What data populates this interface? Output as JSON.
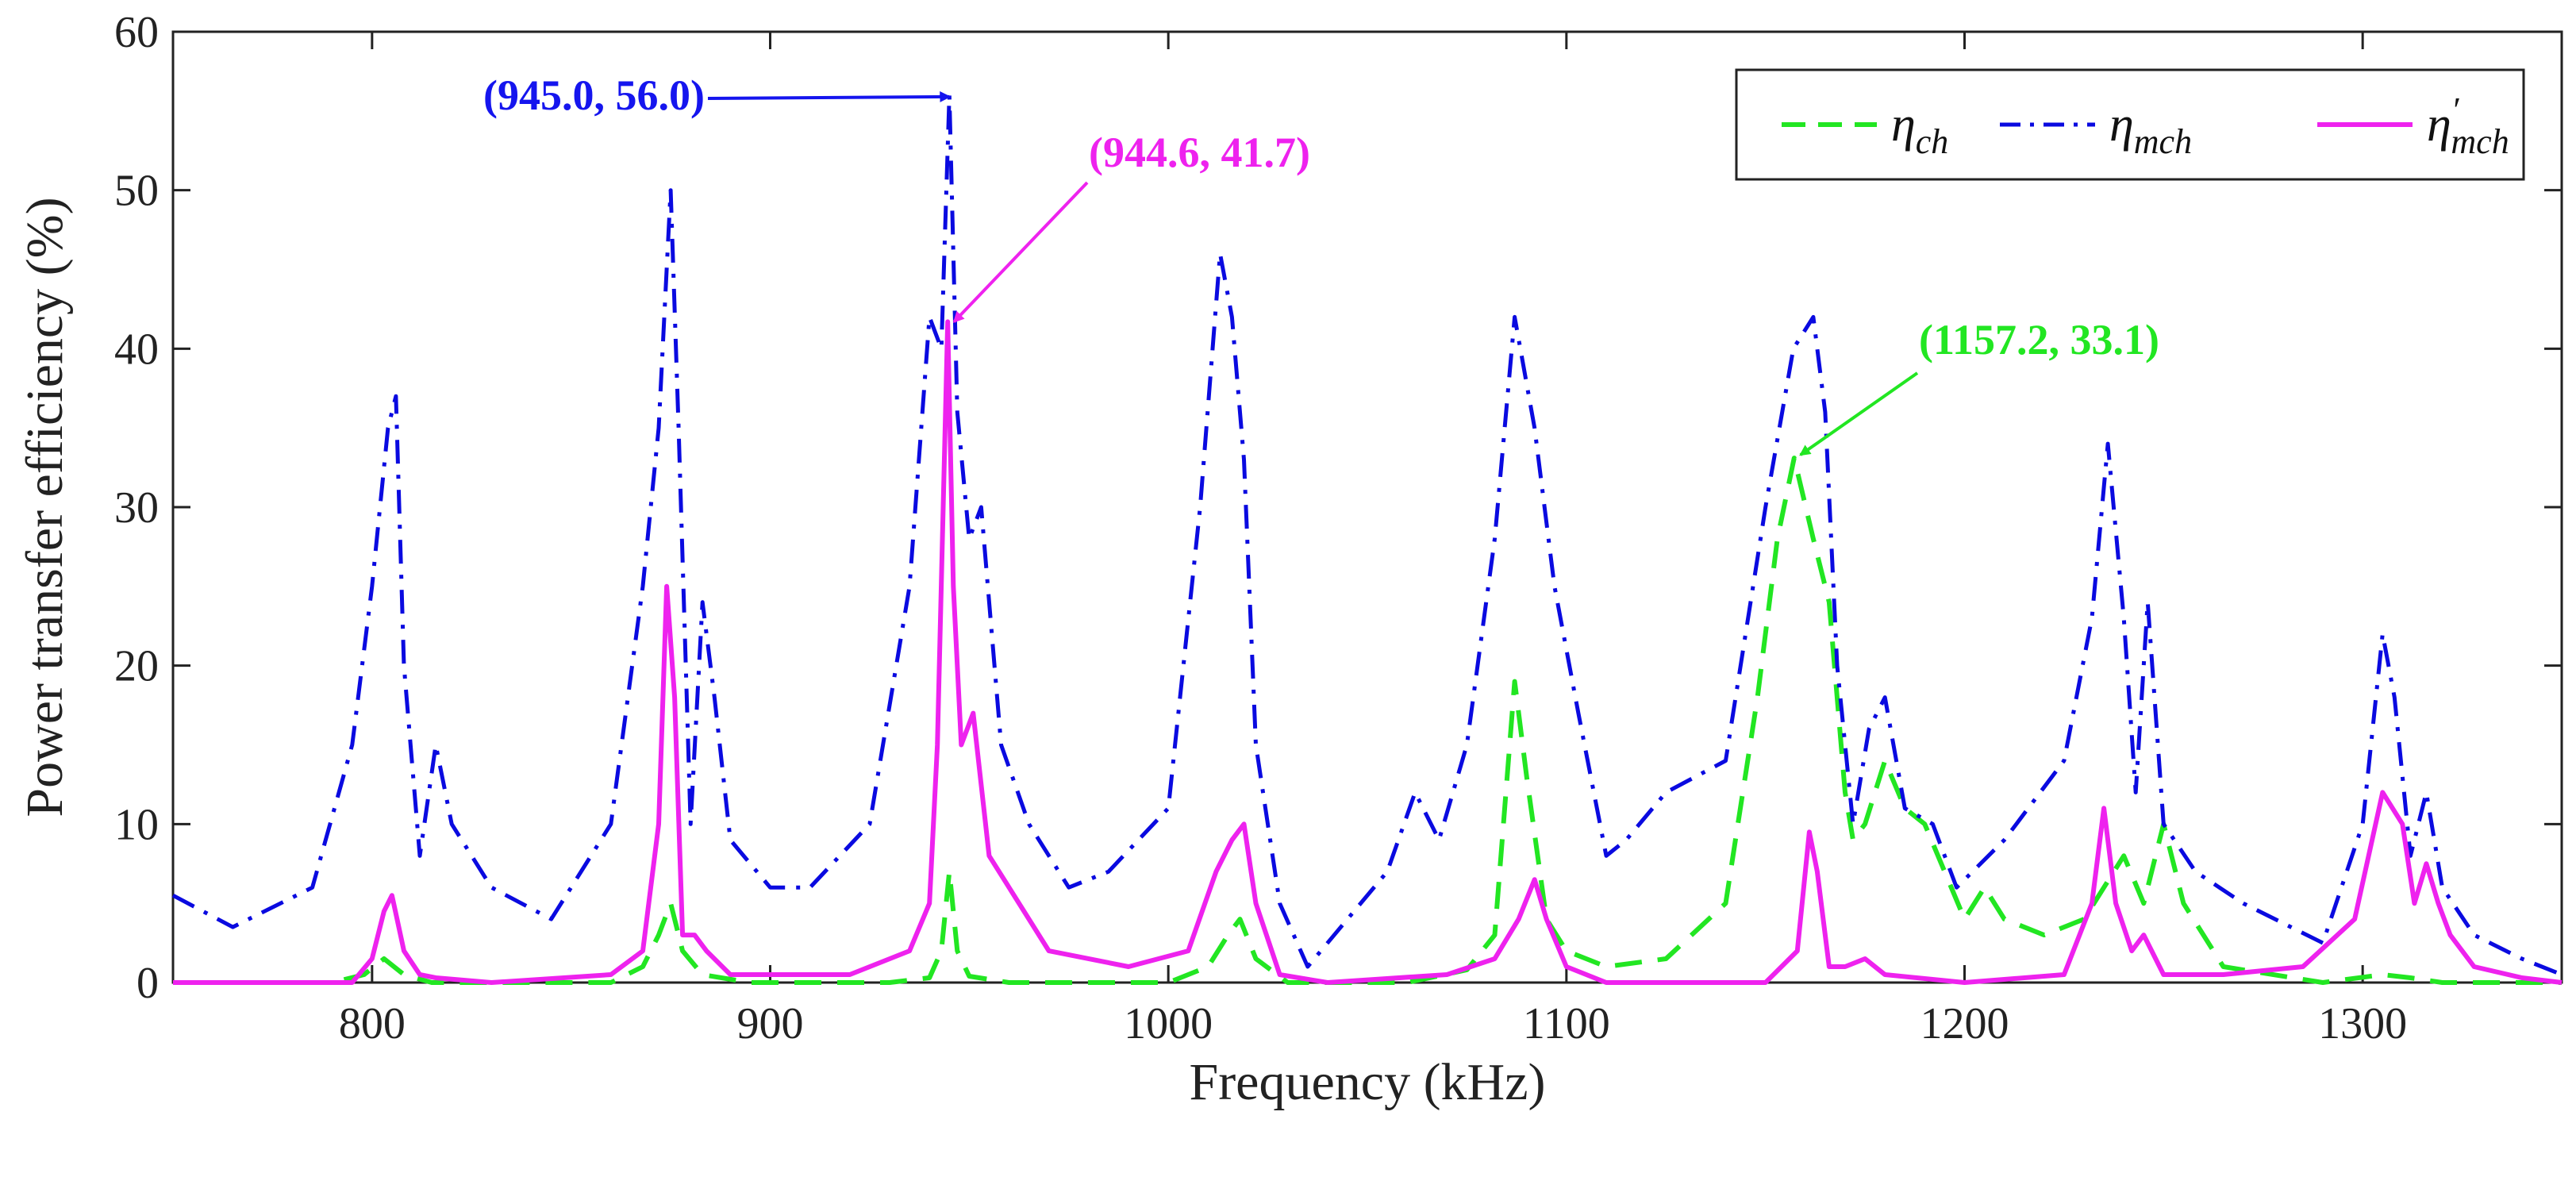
{
  "chart_data": {
    "type": "line",
    "title": "",
    "xlabel": "Frequency (kHz)",
    "ylabel": "Power transfer efficiency (%)",
    "xlim": [
      750,
      1350
    ],
    "ylim": [
      0,
      60
    ],
    "x_ticks": [
      "800",
      "900",
      "1000",
      "1100",
      "1200",
      "1300"
    ],
    "x_tick_values": [
      800,
      900,
      1000,
      1100,
      1200,
      1300
    ],
    "y_ticks": [
      "0",
      "10",
      "20",
      "30",
      "40",
      "50",
      "60"
    ],
    "y_tick_values": [
      0,
      10,
      20,
      30,
      40,
      50,
      60
    ],
    "grid": false,
    "legend": {
      "position": "top-right",
      "entries": [
        {
          "symbol": "η",
          "subscript": "ch",
          "prime": "",
          "series": "eta_ch"
        },
        {
          "symbol": "η",
          "subscript": "mch",
          "prime": "",
          "series": "eta_mch"
        },
        {
          "symbol": "η",
          "subscript": "mch",
          "prime": "′",
          "series": "eta_mch_prime"
        }
      ]
    },
    "series": [
      {
        "id": "eta_ch",
        "name": "η_ch",
        "color": "#22e622",
        "style": "dashed",
        "x": [
          750,
          790,
          798,
          803,
          808,
          815,
          830,
          860,
          868,
          872,
          875,
          878,
          883,
          895,
          930,
          940,
          943,
          945,
          947,
          950,
          960,
          1000,
          1010,
          1015,
          1018,
          1022,
          1030,
          1060,
          1075,
          1082,
          1087,
          1090,
          1095,
          1100,
          1110,
          1125,
          1140,
          1148,
          1153,
          1157.2,
          1162,
          1166,
          1170,
          1172,
          1175,
          1180,
          1185,
          1190,
          1195,
          1200,
          1205,
          1210,
          1220,
          1230,
          1235,
          1240,
          1245,
          1250,
          1255,
          1265,
          1290,
          1305,
          1312,
          1320,
          1350
        ],
        "values": [
          0,
          0,
          0.5,
          1.5,
          0.5,
          0,
          0,
          0,
          1,
          3,
          5,
          2,
          0.5,
          0,
          0,
          0.3,
          2,
          7,
          2,
          0.4,
          0,
          0,
          1,
          3,
          4,
          1.5,
          0,
          0,
          0.8,
          3,
          19,
          13,
          4,
          2,
          1,
          1.5,
          5,
          18,
          28,
          33.1,
          28,
          24,
          12,
          9,
          10,
          14,
          11,
          10,
          7,
          4,
          6,
          4,
          3,
          4,
          6,
          8,
          5,
          10,
          5,
          1,
          0,
          0.5,
          0.3,
          0,
          0
        ]
      },
      {
        "id": "eta_mch",
        "name": "η_mch",
        "color": "#0a0ae0",
        "style": "dashdot",
        "x": [
          750,
          765,
          785,
          795,
          800,
          804,
          806,
          808,
          812,
          816,
          820,
          830,
          845,
          860,
          868,
          872,
          875,
          877,
          880,
          883,
          886,
          890,
          900,
          910,
          925,
          935,
          940,
          943,
          945,
          947,
          950,
          953,
          958,
          965,
          975,
          985,
          1000,
          1008,
          1013,
          1016,
          1019,
          1022,
          1028,
          1035,
          1045,
          1055,
          1062,
          1068,
          1075,
          1082,
          1087,
          1092,
          1097,
          1103,
          1110,
          1115,
          1125,
          1140,
          1150,
          1157,
          1162,
          1165,
          1168,
          1172,
          1176,
          1180,
          1185,
          1192,
          1198,
          1210,
          1225,
          1232,
          1236,
          1240,
          1243,
          1246,
          1250,
          1258,
          1270,
          1290,
          1300,
          1305,
          1308,
          1312,
          1316,
          1320,
          1328,
          1340,
          1350
        ],
        "values": [
          5.5,
          3.5,
          6,
          15,
          25,
          35,
          37,
          20,
          8,
          15,
          10,
          6,
          4,
          10,
          25,
          35,
          50,
          35,
          10,
          24,
          18,
          9,
          6,
          6,
          10,
          25,
          42,
          40,
          56,
          36,
          28,
          30,
          15,
          10,
          6,
          7,
          11,
          30,
          46,
          42,
          33,
          15,
          5,
          1,
          4,
          7,
          12,
          9,
          15,
          28,
          42,
          35,
          25,
          17,
          8,
          9,
          12,
          14,
          30,
          40,
          42,
          36,
          20,
          10,
          16,
          18,
          11,
          10,
          6,
          9,
          14,
          23,
          34,
          23,
          12,
          24,
          10,
          7,
          5,
          2.5,
          10,
          22,
          18,
          8,
          12,
          6,
          3,
          1.5,
          0.5
        ]
      },
      {
        "id": "eta_mch_prime",
        "name": "η′_mch",
        "color": "#ee22ee",
        "style": "solid",
        "x": [
          750,
          795,
          800,
          803,
          805,
          808,
          812,
          816,
          830,
          860,
          868,
          872,
          874,
          876,
          878,
          881,
          884,
          890,
          920,
          935,
          940,
          942,
          944.6,
          946,
          948,
          951,
          955,
          960,
          970,
          990,
          1005,
          1012,
          1016,
          1019,
          1022,
          1028,
          1040,
          1070,
          1082,
          1088,
          1092,
          1095,
          1100,
          1110,
          1150,
          1158,
          1161,
          1163,
          1166,
          1170,
          1175,
          1180,
          1200,
          1225,
          1232,
          1235,
          1238,
          1242,
          1245,
          1250,
          1265,
          1285,
          1298,
          1305,
          1310,
          1313,
          1316,
          1319,
          1322,
          1328,
          1340,
          1350
        ],
        "values": [
          0,
          0,
          1.5,
          4.5,
          5.5,
          2,
          0.5,
          0.3,
          0,
          0.5,
          2,
          10,
          25,
          18,
          3,
          3,
          2,
          0.5,
          0.5,
          2,
          5,
          15,
          41.7,
          25,
          15,
          17,
          8,
          6,
          2,
          1,
          2,
          7,
          9,
          10,
          5,
          0.5,
          0,
          0.5,
          1.5,
          4,
          6.5,
          4,
          1,
          0,
          0,
          2,
          9.5,
          7,
          1,
          1,
          1.5,
          0.5,
          0,
          0.5,
          5,
          11,
          5,
          2,
          3,
          0.5,
          0.5,
          1,
          4,
          12,
          10,
          5,
          7.5,
          5,
          3,
          1,
          0.3,
          0
        ]
      }
    ],
    "annotations": [
      {
        "text": "(945.0, 56.0)",
        "point": [
          945.0,
          56.0
        ],
        "color": "#1515ee"
      },
      {
        "text": "(944.6, 41.7)",
        "point": [
          944.6,
          41.7
        ],
        "color": "#ee22ee"
      },
      {
        "text": "(1157.2, 33.1)",
        "point": [
          1157.2,
          33.1
        ],
        "color": "#22e622"
      }
    ]
  }
}
